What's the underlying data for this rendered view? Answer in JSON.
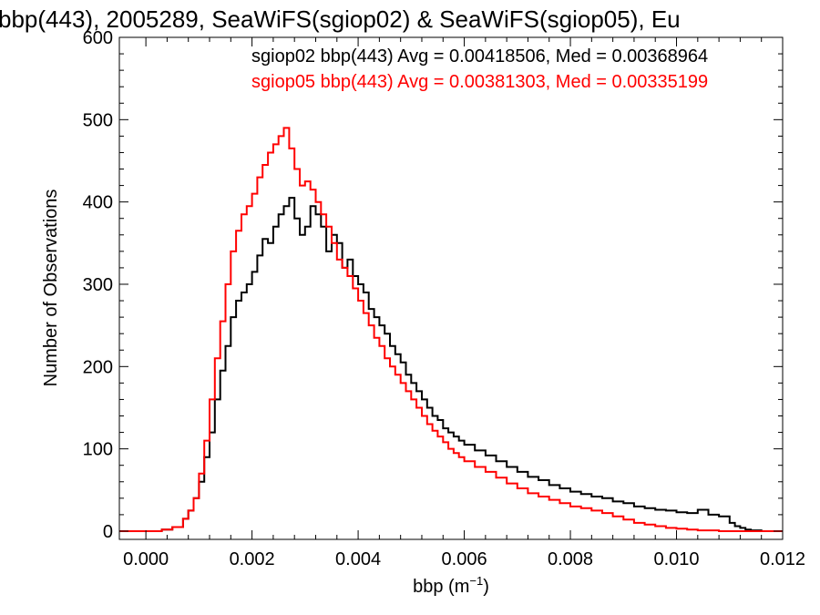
{
  "chart_data": {
    "type": "histogram",
    "title": "bbp(443), 2005289, SeaWiFS(sgiop02) & SeaWiFS(sgiop05), Eu",
    "xlabel": "bbp (m⁻¹)",
    "ylabel": "Number of Observations",
    "xlim": [
      -0.0005,
      0.012
    ],
    "ylim": [
      -10,
      600
    ],
    "xticks": [
      "0.000",
      "0.002",
      "0.004",
      "0.006",
      "0.008",
      "0.010",
      "0.012"
    ],
    "yticks": [
      "0",
      "100",
      "200",
      "300",
      "400",
      "500",
      "600"
    ],
    "grid": false,
    "legend_position": "top-right",
    "legend": [
      "sgiop02 bbp(443) Avg = 0.00418506, Med = 0.00368964",
      "sgiop05 bbp(443) Avg = 0.00381303, Med = 0.00335199"
    ],
    "series": [
      {
        "name": "sgiop02",
        "color": "#000000",
        "x": [
          -0.0005,
          0.0,
          0.0003,
          0.0005,
          0.0007,
          0.0008,
          0.0009,
          0.001,
          0.0011,
          0.0012,
          0.0013,
          0.0014,
          0.0015,
          0.0016,
          0.0017,
          0.0018,
          0.0019,
          0.002,
          0.0021,
          0.0022,
          0.0023,
          0.0024,
          0.0025,
          0.0026,
          0.0027,
          0.0028,
          0.0029,
          0.003,
          0.0031,
          0.0032,
          0.0033,
          0.0034,
          0.0035,
          0.0036,
          0.0037,
          0.0038,
          0.0039,
          0.004,
          0.0041,
          0.0042,
          0.0043,
          0.0044,
          0.0045,
          0.0046,
          0.0047,
          0.0048,
          0.0049,
          0.005,
          0.0051,
          0.0052,
          0.0053,
          0.0054,
          0.0055,
          0.0056,
          0.0057,
          0.0058,
          0.0059,
          0.006,
          0.0062,
          0.0064,
          0.0066,
          0.0068,
          0.007,
          0.0072,
          0.0074,
          0.0076,
          0.0078,
          0.008,
          0.0082,
          0.0084,
          0.0086,
          0.0088,
          0.009,
          0.0092,
          0.0094,
          0.0096,
          0.0098,
          0.01,
          0.0102,
          0.0104,
          0.0106,
          0.0108,
          0.011,
          0.0111,
          0.0112,
          0.0113,
          0.0114,
          0.0116,
          0.012
        ],
        "values": [
          0,
          0,
          2,
          5,
          15,
          25,
          40,
          60,
          90,
          120,
          160,
          195,
          225,
          260,
          280,
          290,
          300,
          315,
          335,
          355,
          350,
          370,
          385,
          395,
          405,
          380,
          360,
          370,
          395,
          385,
          370,
          340,
          360,
          350,
          320,
          330,
          310,
          300,
          290,
          270,
          260,
          250,
          240,
          225,
          215,
          205,
          190,
          180,
          170,
          160,
          150,
          140,
          135,
          125,
          120,
          115,
          110,
          105,
          98,
          92,
          85,
          78,
          72,
          66,
          62,
          56,
          52,
          48,
          45,
          42,
          40,
          36,
          34,
          30,
          28,
          26,
          25,
          23,
          22,
          26,
          20,
          18,
          10,
          6,
          4,
          2,
          1,
          0,
          0
        ]
      },
      {
        "name": "sgiop05",
        "color": "#ff0000",
        "x": [
          -0.0005,
          0.0,
          0.0003,
          0.0005,
          0.0007,
          0.0008,
          0.0009,
          0.001,
          0.0011,
          0.0012,
          0.0013,
          0.0014,
          0.0015,
          0.0016,
          0.0017,
          0.0018,
          0.0019,
          0.002,
          0.0021,
          0.0022,
          0.0023,
          0.0024,
          0.0025,
          0.0026,
          0.0027,
          0.0028,
          0.0029,
          0.003,
          0.0031,
          0.0032,
          0.0033,
          0.0034,
          0.0035,
          0.0036,
          0.0037,
          0.0038,
          0.0039,
          0.004,
          0.0041,
          0.0042,
          0.0043,
          0.0044,
          0.0045,
          0.0046,
          0.0047,
          0.0048,
          0.0049,
          0.005,
          0.0051,
          0.0052,
          0.0053,
          0.0054,
          0.0055,
          0.0056,
          0.0057,
          0.0058,
          0.0059,
          0.006,
          0.0062,
          0.0064,
          0.0066,
          0.0068,
          0.007,
          0.0072,
          0.0074,
          0.0076,
          0.0078,
          0.008,
          0.0082,
          0.0084,
          0.0086,
          0.0088,
          0.009,
          0.0092,
          0.0094,
          0.0096,
          0.0098,
          0.01,
          0.0102,
          0.0104,
          0.0106,
          0.0108,
          0.011,
          0.0112,
          0.0116,
          0.012
        ],
        "values": [
          0,
          0,
          2,
          5,
          15,
          25,
          40,
          70,
          110,
          160,
          210,
          255,
          300,
          340,
          365,
          385,
          395,
          410,
          430,
          445,
          460,
          470,
          480,
          490,
          465,
          440,
          420,
          425,
          415,
          400,
          385,
          370,
          350,
          330,
          320,
          310,
          295,
          280,
          265,
          250,
          235,
          225,
          210,
          200,
          190,
          180,
          170,
          160,
          150,
          140,
          130,
          122,
          115,
          108,
          100,
          95,
          90,
          85,
          78,
          72,
          65,
          58,
          52,
          46,
          42,
          38,
          34,
          30,
          28,
          25,
          22,
          18,
          14,
          10,
          8,
          6,
          4,
          3,
          2,
          1,
          1,
          0,
          0,
          0,
          0,
          0
        ]
      }
    ]
  }
}
